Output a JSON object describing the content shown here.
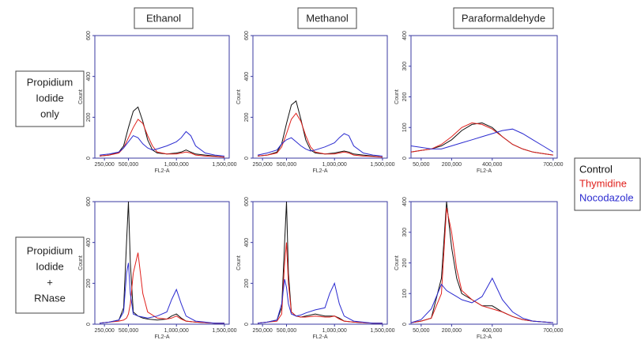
{
  "columns": [
    "Ethanol",
    "Methanol",
    "Paraformaldehyde"
  ],
  "rows": [
    [
      "Propidium",
      "Iodide",
      "only"
    ],
    [
      "Propidium",
      "Iodide",
      "+",
      "RNase"
    ]
  ],
  "legend": [
    {
      "name": "Control",
      "color": "#111111"
    },
    {
      "name": "Thymidine",
      "color": "#e0201c"
    },
    {
      "name": "Nocodazole",
      "color": "#2b2bd0"
    }
  ],
  "chart_data": [
    {
      "type": "line",
      "x_label": "FL2-A",
      "y_label": "Count",
      "xlim": [
        150000,
        1550000
      ],
      "xticks": [
        {
          "value": 250000,
          "label": "250,000"
        },
        {
          "value": 500000,
          "label": "500,000"
        },
        {
          "value": 1000000,
          "label": "1,000,000"
        },
        {
          "value": 1500000,
          "label": "1,500,000"
        }
      ],
      "ylim": [
        0,
        600
      ],
      "yticks": [
        0,
        200,
        400,
        600
      ],
      "x": [
        200000,
        300000,
        400000,
        450000,
        500000,
        550000,
        600000,
        650000,
        700000,
        750000,
        800000,
        900000,
        1000000,
        1050000,
        1100000,
        1150000,
        1200000,
        1300000,
        1400000,
        1500000
      ],
      "series": [
        {
          "values": [
            10,
            15,
            30,
            60,
            150,
            230,
            250,
            180,
            90,
            40,
            25,
            20,
            25,
            30,
            40,
            30,
            20,
            15,
            10,
            5
          ]
        },
        {
          "values": [
            10,
            15,
            25,
            50,
            100,
            150,
            190,
            170,
            110,
            60,
            30,
            20,
            20,
            25,
            30,
            25,
            15,
            10,
            8,
            5
          ]
        },
        {
          "values": [
            15,
            20,
            30,
            50,
            80,
            110,
            100,
            70,
            50,
            40,
            45,
            60,
            80,
            100,
            130,
            110,
            60,
            25,
            15,
            10
          ]
        }
      ]
    },
    {
      "type": "line",
      "x_label": "FL2-A",
      "y_label": "Count",
      "xlim": [
        150000,
        1550000
      ],
      "xticks": [
        {
          "value": 250000,
          "label": "250,000"
        },
        {
          "value": 500000,
          "label": "500,000"
        },
        {
          "value": 1000000,
          "label": "1,000,000"
        },
        {
          "value": 1500000,
          "label": "1,500,000"
        }
      ],
      "ylim": [
        0,
        600
      ],
      "yticks": [
        0,
        200,
        400,
        600
      ],
      "x": [
        200000,
        300000,
        400000,
        450000,
        500000,
        550000,
        600000,
        650000,
        700000,
        750000,
        800000,
        900000,
        1000000,
        1050000,
        1100000,
        1150000,
        1200000,
        1300000,
        1400000,
        1500000
      ],
      "series": [
        {
          "values": [
            10,
            15,
            30,
            70,
            170,
            260,
            280,
            190,
            90,
            40,
            25,
            20,
            25,
            30,
            35,
            30,
            20,
            15,
            10,
            5
          ]
        },
        {
          "values": [
            10,
            15,
            25,
            55,
            120,
            190,
            220,
            180,
            110,
            55,
            30,
            20,
            20,
            25,
            30,
            25,
            15,
            10,
            8,
            5
          ]
        },
        {
          "values": [
            15,
            25,
            40,
            70,
            90,
            100,
            80,
            60,
            45,
            35,
            40,
            55,
            75,
            100,
            120,
            110,
            60,
            25,
            15,
            10
          ]
        }
      ]
    },
    {
      "type": "line",
      "x_label": "FL2-A",
      "y_label": "Count",
      "xlim": [
        0,
        720000
      ],
      "xticks": [
        {
          "value": 50000,
          "label": "50,000"
        },
        {
          "value": 200000,
          "label": "200,000"
        },
        {
          "value": 400000,
          "label": "400,000"
        },
        {
          "value": 700000,
          "label": "700,000"
        }
      ],
      "ylim": [
        0,
        400
      ],
      "yticks": [
        0,
        100,
        200,
        300,
        400
      ],
      "x": [
        0,
        50000,
        100000,
        150000,
        200000,
        250000,
        300000,
        350000,
        400000,
        450000,
        500000,
        550000,
        600000,
        650000,
        700000
      ],
      "series": [
        {
          "values": [
            20,
            25,
            30,
            40,
            60,
            90,
            110,
            115,
            100,
            70,
            45,
            30,
            20,
            15,
            10
          ]
        },
        {
          "values": [
            20,
            25,
            30,
            45,
            70,
            100,
            115,
            110,
            95,
            70,
            45,
            30,
            20,
            15,
            10
          ]
        },
        {
          "values": [
            40,
            35,
            30,
            30,
            40,
            50,
            60,
            70,
            80,
            90,
            95,
            80,
            60,
            40,
            20
          ]
        }
      ]
    },
    {
      "type": "line",
      "x_label": "FL2-A",
      "y_label": "Count",
      "xlim": [
        150000,
        1550000
      ],
      "xticks": [
        {
          "value": 250000,
          "label": "250,000"
        },
        {
          "value": 500000,
          "label": "500,000"
        },
        {
          "value": 1000000,
          "label": "1,000,000"
        },
        {
          "value": 1500000,
          "label": "1,500,000"
        }
      ],
      "ylim": [
        0,
        600
      ],
      "yticks": [
        0,
        200,
        400,
        600
      ],
      "x": [
        200000,
        300000,
        400000,
        450000,
        480000,
        500000,
        520000,
        550000,
        600000,
        650000,
        700000,
        800000,
        900000,
        950000,
        1000000,
        1050000,
        1100000,
        1200000,
        1400000,
        1500000
      ],
      "series": [
        {
          "values": [
            5,
            10,
            20,
            80,
            400,
            600,
            300,
            60,
            40,
            30,
            25,
            20,
            25,
            40,
            50,
            30,
            15,
            10,
            5,
            5
          ]
        },
        {
          "values": [
            5,
            10,
            15,
            20,
            30,
            50,
            100,
            250,
            350,
            150,
            60,
            30,
            25,
            30,
            40,
            25,
            15,
            10,
            5,
            5
          ]
        },
        {
          "values": [
            5,
            10,
            20,
            60,
            250,
            300,
            150,
            50,
            40,
            35,
            30,
            40,
            60,
            120,
            170,
            100,
            40,
            15,
            5,
            5
          ]
        }
      ]
    },
    {
      "type": "line",
      "x_label": "FL2-A",
      "y_label": "Count",
      "xlim": [
        150000,
        1550000
      ],
      "xticks": [
        {
          "value": 250000,
          "label": "250,000"
        },
        {
          "value": 500000,
          "label": "500,000"
        },
        {
          "value": 1000000,
          "label": "1,000,000"
        },
        {
          "value": 1500000,
          "label": "1,500,000"
        }
      ],
      "ylim": [
        0,
        600
      ],
      "yticks": [
        0,
        200,
        400,
        600
      ],
      "x": [
        200000,
        300000,
        400000,
        450000,
        480000,
        500000,
        520000,
        550000,
        600000,
        650000,
        700000,
        800000,
        900000,
        950000,
        1000000,
        1050000,
        1100000,
        1200000,
        1400000,
        1500000
      ],
      "series": [
        {
          "values": [
            5,
            10,
            20,
            80,
            400,
            600,
            250,
            60,
            40,
            35,
            40,
            50,
            40,
            40,
            40,
            30,
            15,
            10,
            5,
            5
          ]
        },
        {
          "values": [
            5,
            10,
            15,
            50,
            300,
            400,
            200,
            60,
            40,
            35,
            35,
            40,
            35,
            35,
            40,
            25,
            15,
            10,
            5,
            5
          ]
        },
        {
          "values": [
            5,
            10,
            20,
            100,
            220,
            180,
            100,
            50,
            40,
            45,
            55,
            70,
            80,
            150,
            200,
            100,
            40,
            15,
            5,
            5
          ]
        }
      ]
    },
    {
      "type": "line",
      "x_label": "FL2-A",
      "y_label": "Count",
      "xlim": [
        0,
        720000
      ],
      "xticks": [
        {
          "value": 50000,
          "label": "50,000"
        },
        {
          "value": 200000,
          "label": "200,000"
        },
        {
          "value": 400000,
          "label": "400,000"
        },
        {
          "value": 700000,
          "label": "700,000"
        }
      ],
      "ylim": [
        0,
        400
      ],
      "yticks": [
        0,
        100,
        200,
        300,
        400
      ],
      "x": [
        0,
        50000,
        100000,
        150000,
        175000,
        200000,
        225000,
        250000,
        300000,
        350000,
        400000,
        450000,
        500000,
        550000,
        600000,
        700000
      ],
      "series": [
        {
          "values": [
            5,
            10,
            20,
            150,
            400,
            250,
            150,
            100,
            80,
            60,
            60,
            40,
            25,
            15,
            10,
            5
          ]
        },
        {
          "values": [
            5,
            10,
            20,
            100,
            380,
            300,
            180,
            110,
            80,
            60,
            50,
            40,
            25,
            15,
            10,
            5
          ]
        },
        {
          "values": [
            5,
            15,
            50,
            130,
            110,
            100,
            90,
            80,
            70,
            90,
            150,
            80,
            40,
            20,
            10,
            5
          ]
        }
      ]
    }
  ]
}
